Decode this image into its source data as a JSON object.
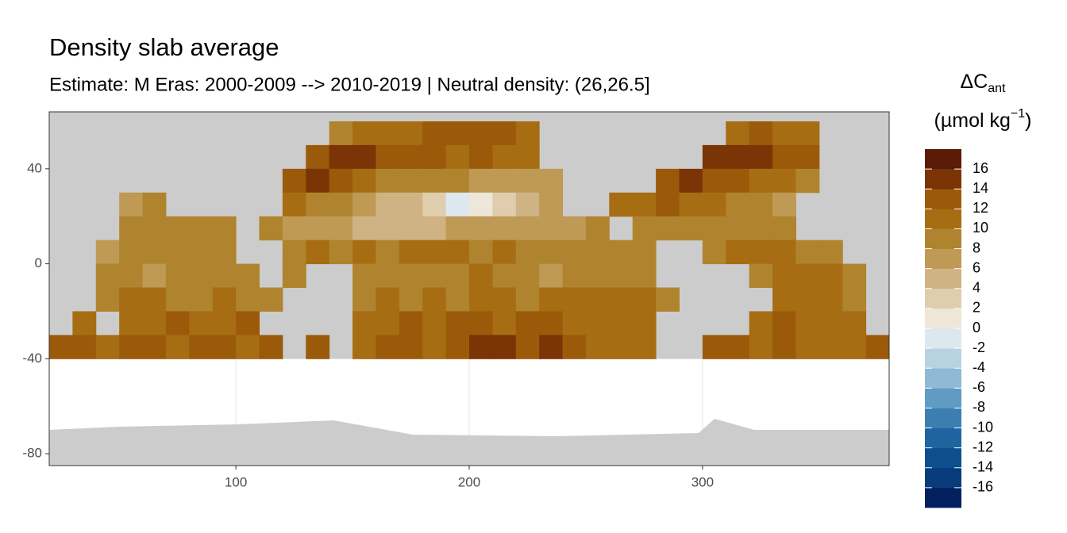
{
  "chart_data": {
    "type": "raster",
    "title": "Density slab average",
    "subtitle": "Estimate: M Eras: 2000-2009 --> 2010-2019 | Neutral density: (26,26.5]",
    "legend_title": [
      "ΔC",
      "ant"
    ],
    "legend_unit": [
      "(µmol kg",
      "−1",
      ")"
    ],
    "xlim": [
      20,
      380
    ],
    "ylim": [
      -85,
      64
    ],
    "xticks": [
      100,
      200,
      300
    ],
    "yticks": [
      40,
      0,
      -40,
      -80
    ],
    "grid": true,
    "cell_size": 10,
    "x": [
      25,
      35,
      45,
      55,
      65,
      75,
      85,
      95,
      105,
      115,
      125,
      135,
      145,
      155,
      165,
      175,
      185,
      195,
      205,
      215,
      225,
      235,
      245,
      255,
      265,
      275,
      285,
      295,
      305,
      315,
      325,
      335,
      345,
      355,
      365,
      375
    ],
    "y": [
      55,
      45,
      35,
      25,
      15,
      5,
      -5,
      -15,
      -25,
      -35
    ],
    "values": [
      [
        null,
        null,
        null,
        null,
        null,
        null,
        null,
        null,
        null,
        null,
        null,
        null,
        9,
        10,
        10,
        11,
        12,
        12,
        13,
        12,
        11,
        null,
        null,
        null,
        null,
        null,
        null,
        null,
        null,
        11,
        12,
        11,
        10,
        null,
        null,
        null
      ],
      [
        null,
        null,
        null,
        null,
        null,
        null,
        null,
        null,
        null,
        null,
        null,
        13,
        15,
        14,
        13,
        12,
        12,
        11,
        12,
        11,
        10,
        null,
        null,
        null,
        null,
        null,
        null,
        null,
        14,
        15,
        14,
        13,
        12,
        null,
        null,
        null
      ],
      [
        null,
        null,
        null,
        null,
        null,
        null,
        null,
        null,
        null,
        null,
        12,
        14,
        12,
        10,
        9,
        9,
        8,
        8,
        7,
        7,
        6,
        6,
        null,
        null,
        null,
        null,
        13,
        14,
        13,
        12,
        11,
        10,
        9,
        null,
        null,
        null
      ],
      [
        null,
        null,
        null,
        7,
        8,
        null,
        null,
        null,
        null,
        null,
        10,
        9,
        8,
        6,
        5,
        4,
        2,
        -2,
        0,
        2,
        5,
        6,
        null,
        null,
        10,
        10,
        12,
        11,
        10,
        9,
        8,
        7,
        null,
        null,
        null,
        null
      ],
      [
        null,
        null,
        null,
        8,
        9,
        8,
        9,
        8,
        null,
        8,
        7,
        7,
        6,
        5,
        5,
        4,
        5,
        6,
        6,
        7,
        7,
        7,
        7,
        8,
        null,
        9,
        9,
        9,
        8,
        8,
        8,
        9,
        null,
        null,
        null,
        null
      ],
      [
        null,
        null,
        7,
        8,
        8,
        9,
        8,
        8,
        null,
        null,
        9,
        10,
        9,
        10,
        9,
        10,
        11,
        10,
        9,
        10,
        9,
        8,
        9,
        9,
        9,
        8,
        null,
        null,
        9,
        10,
        11,
        10,
        9,
        9,
        null,
        null
      ],
      [
        null,
        null,
        8,
        8,
        7,
        8,
        8,
        9,
        8,
        null,
        8,
        null,
        null,
        8,
        9,
        8,
        8,
        9,
        10,
        9,
        8,
        7,
        8,
        8,
        9,
        8,
        null,
        null,
        null,
        null,
        9,
        10,
        10,
        10,
        9,
        null
      ],
      [
        null,
        null,
        9,
        10,
        10,
        9,
        9,
        10,
        9,
        9,
        null,
        null,
        null,
        9,
        10,
        9,
        10,
        9,
        10,
        10,
        9,
        10,
        10,
        11,
        10,
        10,
        9,
        null,
        null,
        null,
        null,
        10,
        11,
        10,
        9,
        null
      ],
      [
        null,
        11,
        null,
        11,
        11,
        12,
        11,
        11,
        12,
        null,
        null,
        null,
        null,
        10,
        11,
        12,
        11,
        12,
        13,
        11,
        12,
        13,
        11,
        10,
        11,
        10,
        null,
        null,
        null,
        null,
        11,
        12,
        11,
        10,
        11,
        null
      ],
      [
        12,
        12,
        11,
        12,
        12,
        11,
        12,
        12,
        11,
        12,
        null,
        12,
        null,
        11,
        12,
        12,
        11,
        12,
        14,
        15,
        13,
        14,
        12,
        11,
        11,
        11,
        null,
        null,
        12,
        12,
        11,
        12,
        11,
        10,
        11,
        12
      ]
    ],
    "colorbar_lim": [
      -18,
      18
    ],
    "colorbar_ticks": [
      16,
      14,
      12,
      10,
      8,
      6,
      4,
      2,
      0,
      -2,
      -4,
      -6,
      -8,
      -10,
      -12,
      -14,
      -16
    ],
    "colors": [
      "#021f60",
      "#083b7a",
      "#0d4e8e",
      "#1e65a0",
      "#3a7fb0",
      "#5f9bc2",
      "#8fb9d4",
      "#b8d2e2",
      "#dde8ee",
      "#ede6d9",
      "#dfcdad",
      "#cfb384",
      "#bf9a55",
      "#b0842e",
      "#a66d12",
      "#9b5a0a",
      "#7a3406",
      "#5a1c06"
    ]
  }
}
